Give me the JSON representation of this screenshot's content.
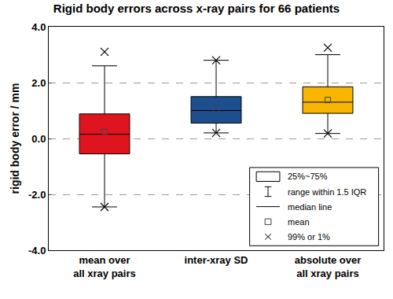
{
  "chart_data": {
    "type": "box",
    "title": "Rigid body errors across x-ray pairs for 66 patients",
    "y_label": "rigid body error / mm",
    "categories": [
      "mean over\nall xray pairs",
      "inter-xray SD",
      "absolute over\nall xray pairs"
    ],
    "colors": [
      "#e0141e",
      "#1d4f8e",
      "#f7b500"
    ],
    "q1": [
      -0.55,
      0.55,
      0.9
    ],
    "median": [
      0.15,
      1.0,
      1.3
    ],
    "q3": [
      0.88,
      1.5,
      1.85
    ],
    "lowerfence": [
      -2.45,
      0.2,
      0.18
    ],
    "upperfence": [
      2.6,
      2.8,
      3.0
    ],
    "mean": [
      0.25,
      1.05,
      1.38
    ],
    "p1": [
      -2.45,
      0.2,
      0.18
    ],
    "p99": [
      3.1,
      2.8,
      3.25
    ],
    "ylim": [
      -4,
      4
    ],
    "yticks": [
      {
        "value": -4,
        "label": "-4.0"
      },
      {
        "value": -2,
        "label": "-2.0"
      },
      {
        "value": 0,
        "label": "0.0"
      },
      {
        "value": 2,
        "label": "2.0"
      },
      {
        "value": 4,
        "label": "4.0"
      }
    ],
    "grid": true,
    "legend": "lower right",
    "legend_labels": [
      "25%~75%",
      "range within 1.5 IQR",
      "median line",
      "mean",
      "99% or 1%"
    ]
  }
}
